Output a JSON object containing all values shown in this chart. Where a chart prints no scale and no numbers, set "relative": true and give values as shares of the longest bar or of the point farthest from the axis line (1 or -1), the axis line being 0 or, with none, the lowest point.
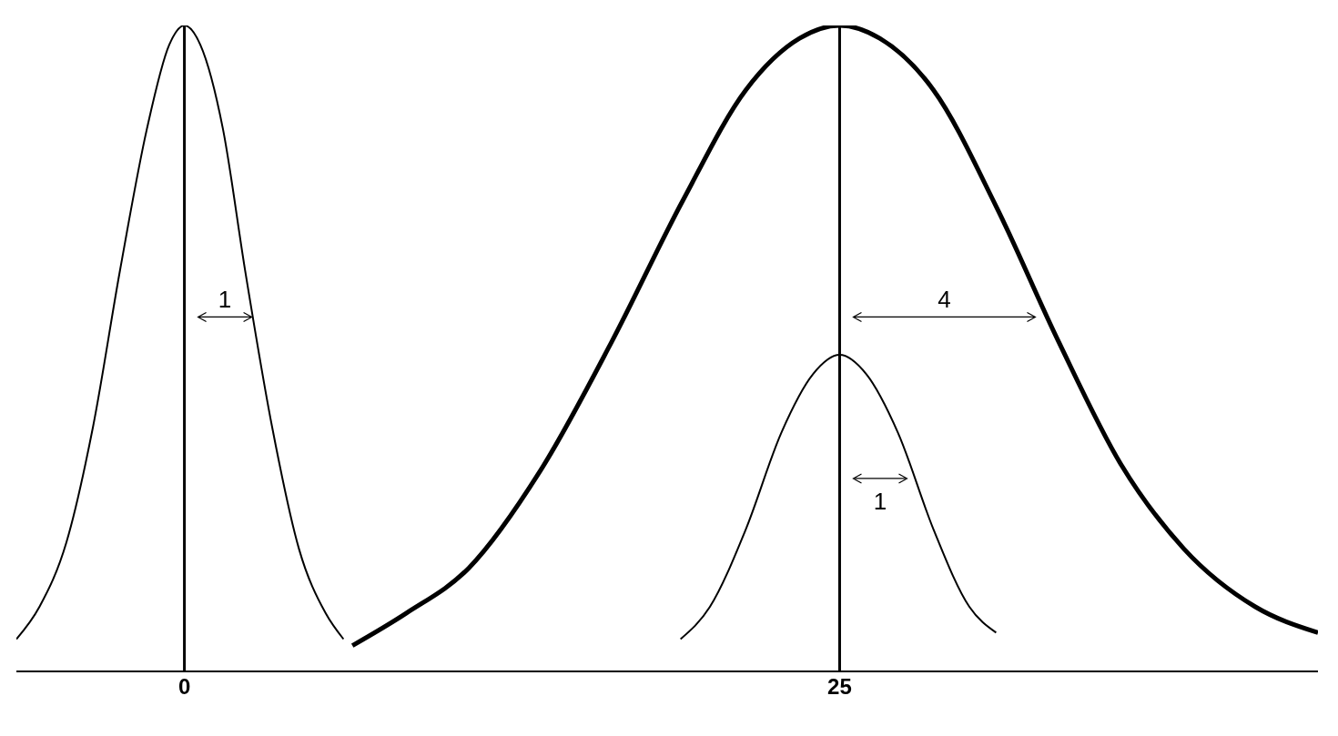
{
  "chart_data": {
    "type": "line",
    "relative": true,
    "xlim": [
      -6.41,
      43.25
    ],
    "xticks": [
      0,
      25
    ],
    "marker": "none",
    "line_style": "solid",
    "series": [
      {
        "color": "#000000",
        "x": [
          -6.41,
          -5.53,
          -4.5,
          -3.48,
          -2.46,
          -1.43,
          -0.58,
          0,
          0.61,
          1.47,
          2.32,
          3.34,
          4.37,
          5.39,
          6.07
        ],
        "values": [
          0.05,
          0.1,
          0.2,
          0.38,
          0.62,
          0.84,
          0.97,
          1,
          0.97,
          0.84,
          0.62,
          0.38,
          0.19,
          0.09,
          0.05
        ]
      },
      {
        "color": "#000000",
        "x": [
          6.41,
          8.46,
          10.85,
          13.57,
          16.3,
          19.03,
          21.42,
          23.47,
          25,
          26.53,
          28.58,
          30.97,
          33.36,
          35.74,
          38.13,
          40.86,
          43.25
        ],
        "values": [
          0.04,
          0.09,
          0.16,
          0.31,
          0.51,
          0.73,
          0.9,
          0.98,
          1,
          0.98,
          0.9,
          0.72,
          0.51,
          0.32,
          0.19,
          0.1,
          0.06
        ]
      },
      {
        "color": "#000000",
        "x": [
          18.93,
          20.05,
          21.42,
          22.78,
          23.98,
          25,
          26.02,
          27.22,
          28.58,
          29.95,
          30.97
        ],
        "values": [
          0.05,
          0.1,
          0.22,
          0.37,
          0.46,
          0.49,
          0.46,
          0.37,
          0.22,
          0.1,
          0.06
        ]
      }
    ],
    "ref_lines": [
      {
        "axis": "x",
        "value": 0,
        "color": "#000000"
      },
      {
        "axis": "x",
        "value": 25,
        "color": "#000000"
      }
    ],
    "annotations": [
      "1",
      "4",
      "1"
    ]
  }
}
